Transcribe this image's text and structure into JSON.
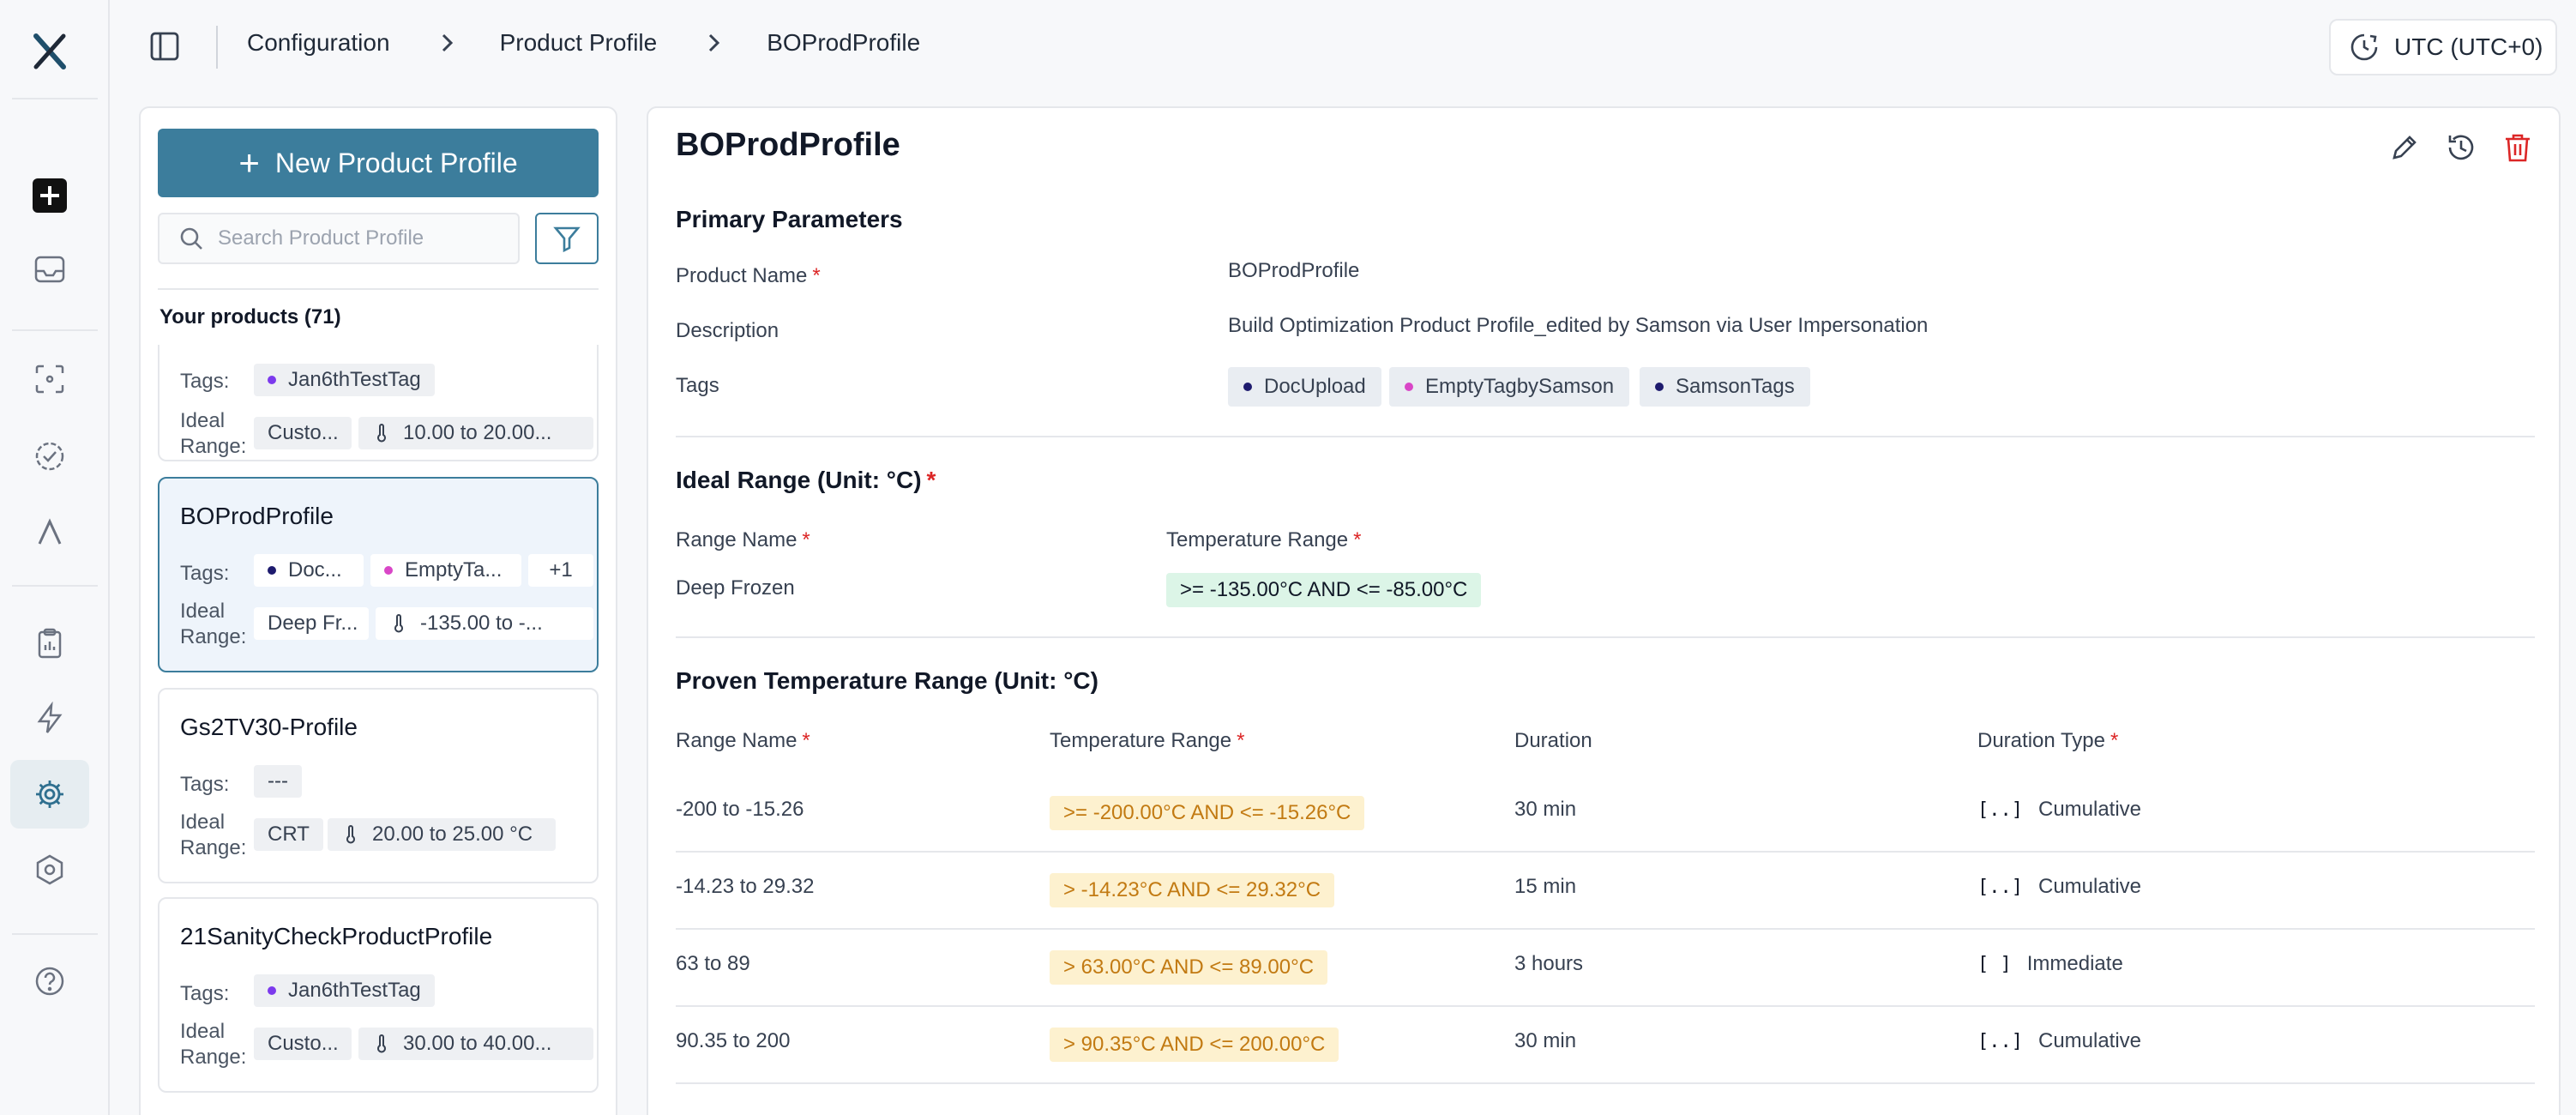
{
  "breadcrumbs": [
    "Configuration",
    "Product Profile",
    "BOProdProfile"
  ],
  "timezone": "UTC (UTC+0)",
  "list": {
    "new_button_label": "New Product Profile",
    "search_placeholder": "Search Product Profile",
    "count_label": "Your products (71)",
    "tags_label": "Tags:",
    "ideal_label_1": "Ideal",
    "ideal_label_2": "Range:",
    "cards": [
      {
        "name": "",
        "tags": [
          "Jan6thTestTag"
        ],
        "range_name": "Custo...",
        "range_value": "10.00 to 20.00..."
      },
      {
        "name": "BOProdProfile",
        "tags": [
          "Doc...",
          "EmptyTa..."
        ],
        "more": "+1",
        "range_name": "Deep Fr...",
        "range_value": "-135.00 to -..."
      },
      {
        "name": "Gs2TV30-Profile",
        "tags": [
          "---"
        ],
        "range_name": "CRT",
        "range_value": "20.00 to 25.00 °C"
      },
      {
        "name": "21SanityCheckProductProfile",
        "tags": [
          "Jan6thTestTag"
        ],
        "range_name": "Custo...",
        "range_value": "30.00 to 40.00..."
      }
    ]
  },
  "detail": {
    "title": "BOProdProfile",
    "primary_title": "Primary Parameters",
    "product_name_label": "Product Name",
    "product_name_value": "BOProdProfile",
    "description_label": "Description",
    "description_value": "Build Optimization Product Profile_edited by Samson via User Impersonation",
    "tags_label": "Tags",
    "tags": [
      "DocUpload",
      "EmptyTagbySamson",
      "SamsonTags"
    ],
    "ideal_title": "Ideal Range (Unit: °C)",
    "ideal_col_name": "Range Name",
    "ideal_col_temp": "Temperature Range",
    "ideal_row": {
      "name": "Deep Frozen",
      "temp": ">= -135.00°C AND <= -85.00°C"
    },
    "proven_title": "Proven Temperature Range (Unit: °C)",
    "proven_cols": {
      "name": "Range Name",
      "temp": "Temperature Range",
      "duration": "Duration",
      "type": "Duration Type"
    },
    "proven_rows": [
      {
        "name": "-200 to -15.26",
        "temp": ">= -200.00°C AND <= -15.26°C",
        "duration": "30 min",
        "type_symbol": "[..]",
        "type": "Cumulative"
      },
      {
        "name": "-14.23 to 29.32",
        "temp": "> -14.23°C AND <= 29.32°C",
        "duration": "15 min",
        "type_symbol": "[..]",
        "type": "Cumulative"
      },
      {
        "name": "63 to 89",
        "temp": "> 63.00°C AND <= 89.00°C",
        "duration": "3 hours",
        "type_symbol": "[ ]",
        "type": "Immediate"
      },
      {
        "name": "90.35 to 200",
        "temp": "> 90.35°C AND <= 200.00°C",
        "duration": "30 min",
        "type_symbol": "[..]",
        "type": "Cumulative"
      }
    ]
  },
  "colors": {
    "primary": "#3c7d9c",
    "danger": "#dc2626",
    "tag_navy": "#1e1b6e",
    "tag_pink": "#d946c7",
    "tag_purple": "#7c3aed"
  }
}
